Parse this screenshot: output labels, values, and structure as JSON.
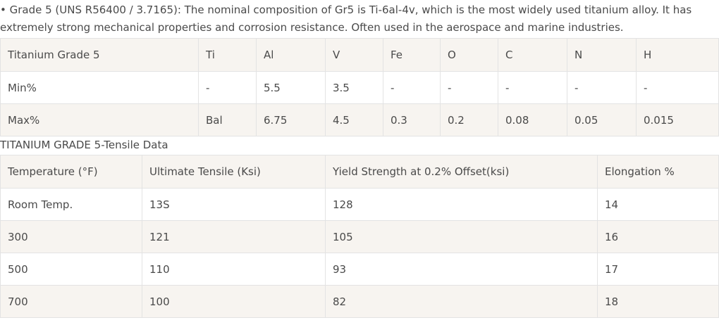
{
  "intro": "• Grade 5 (UNS R56400 / 3.7165): The nominal composition of Gr5 is Ti-6al-4v, which is the most widely used titanium alloy. It has extremely strong mechanical properties and corrosion resistance. Often used in the aerospace and marine industries.",
  "composition_table": {
    "headers": [
      "Titanium Grade 5",
      "Ti",
      "Al",
      "V",
      "Fe",
      "O",
      "C",
      "N",
      "H"
    ],
    "rows": [
      [
        "Min%",
        "-",
        "5.5",
        "3.5",
        "-",
        "-",
        "-",
        "-",
        "-"
      ],
      [
        "Max%",
        "Bal",
        "6.75",
        "4.5",
        "0.3",
        "0.2",
        "0.08",
        "0.05",
        "0.015"
      ]
    ]
  },
  "tensile_title": "TITANIUM GRADE 5-Tensile Data",
  "tensile_table": {
    "headers": [
      "Temperature (°F)",
      "Ultimate Tensile (Ksi)",
      "Yield Strength at 0.2% Offset(ksi)",
      "Elongation %"
    ],
    "rows": [
      [
        "Room Temp.",
        "13S",
        "128",
        "14"
      ],
      [
        "300",
        "121",
        "105",
        "16"
      ],
      [
        "500",
        "110",
        "93",
        "17"
      ],
      [
        "700",
        "100",
        "82",
        "18"
      ]
    ]
  }
}
